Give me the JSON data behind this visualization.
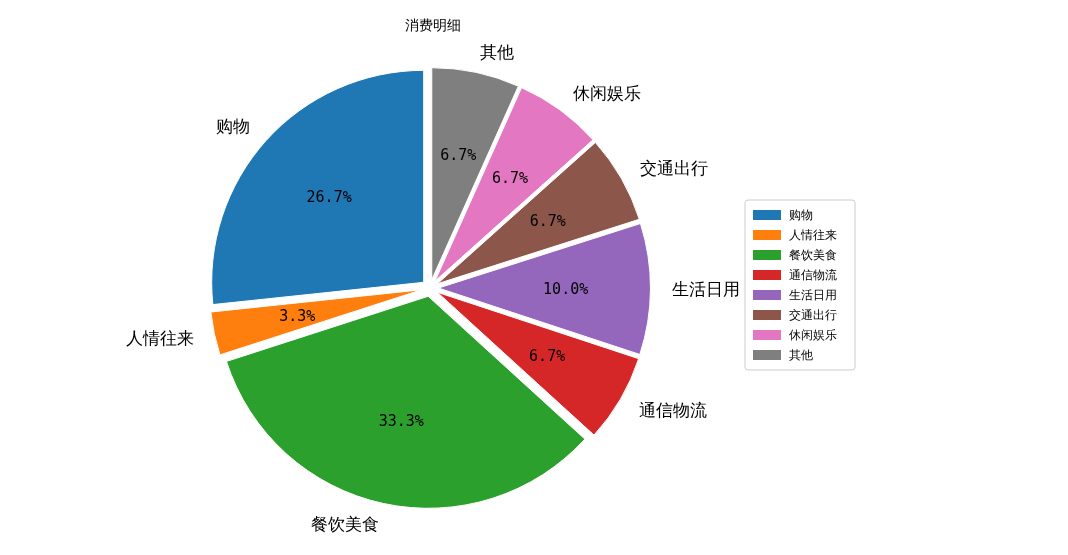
{
  "chart_data": {
    "type": "pie",
    "title": "消费明细",
    "categories": [
      "购物",
      "人情往来",
      "餐饮美食",
      "通信物流",
      "生活日用",
      "交通出行",
      "休闲娱乐",
      "其他"
    ],
    "values": [
      26.7,
      3.3,
      33.3,
      6.7,
      10.0,
      6.7,
      6.7,
      6.7
    ],
    "value_labels": [
      "26.7%",
      "3.3%",
      "33.3%",
      "6.7%",
      "10.0%",
      "6.7%",
      "6.7%",
      "6.7%"
    ],
    "colors": [
      "#1f77b4",
      "#ff7f0e",
      "#2ca02c",
      "#d62728",
      "#9467bd",
      "#8c564b",
      "#e377c2",
      "#7f7f7f"
    ],
    "legend": "right"
  }
}
